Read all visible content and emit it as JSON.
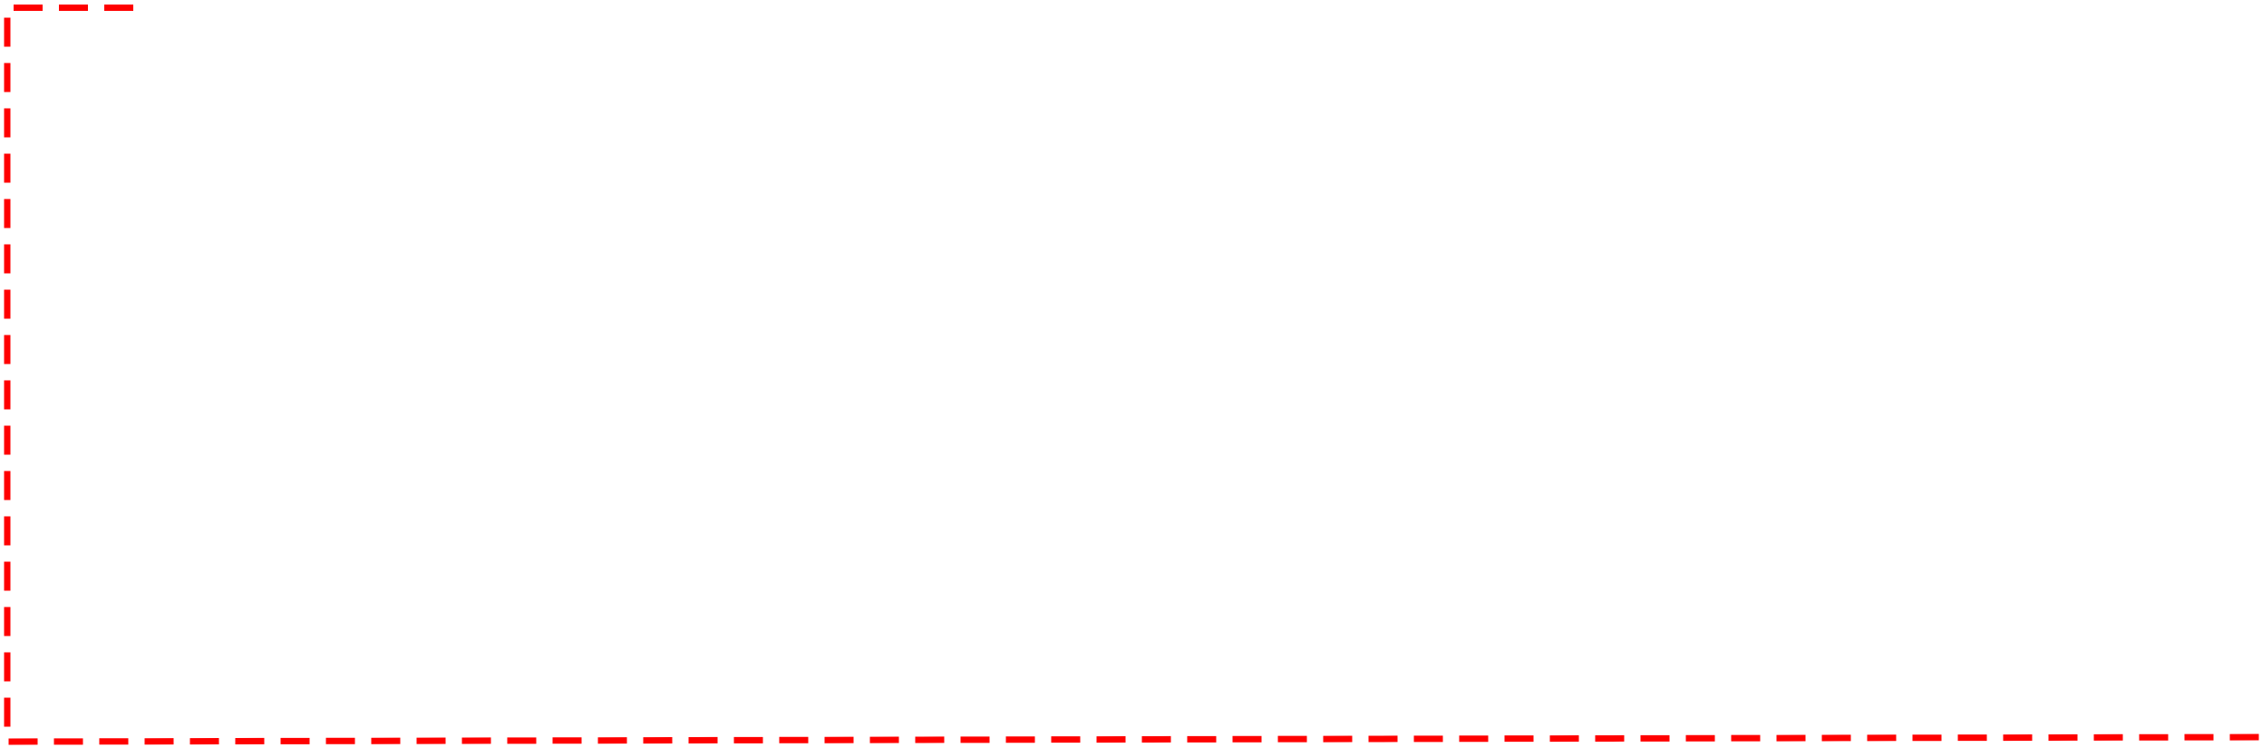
{
  "selection_outline": {
    "color": "#ff0000",
    "style": "dashed"
  }
}
